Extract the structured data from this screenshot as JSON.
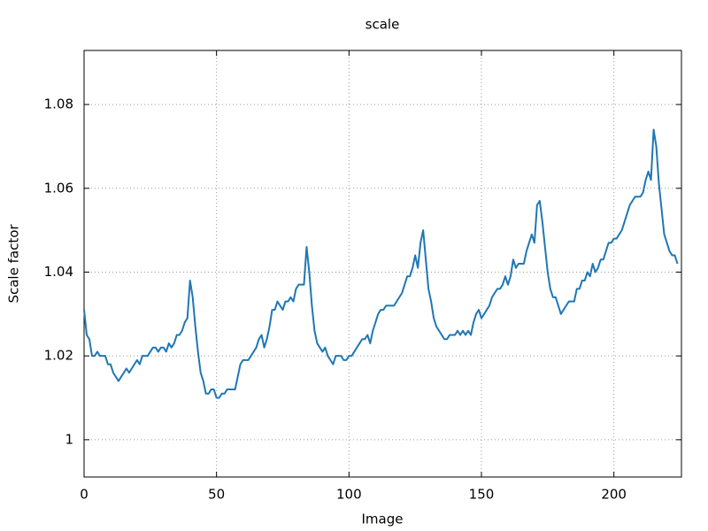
{
  "chart_data": {
    "type": "line",
    "title": "scale",
    "xlabel": "Image",
    "ylabel": "Scale factor",
    "x": [
      0,
      1,
      2,
      3,
      4,
      5,
      6,
      7,
      8,
      9,
      10,
      11,
      12,
      13,
      14,
      15,
      16,
      17,
      18,
      19,
      20,
      21,
      22,
      23,
      24,
      25,
      26,
      27,
      28,
      29,
      30,
      31,
      32,
      33,
      34,
      35,
      36,
      37,
      38,
      39,
      40,
      41,
      42,
      43,
      44,
      45,
      46,
      47,
      48,
      49,
      50,
      51,
      52,
      53,
      54,
      55,
      56,
      57,
      58,
      59,
      60,
      61,
      62,
      63,
      64,
      65,
      66,
      67,
      68,
      69,
      70,
      71,
      72,
      73,
      74,
      75,
      76,
      77,
      78,
      79,
      80,
      81,
      82,
      83,
      84,
      85,
      86,
      87,
      88,
      89,
      90,
      91,
      92,
      93,
      94,
      95,
      96,
      97,
      98,
      99,
      100,
      101,
      102,
      103,
      104,
      105,
      106,
      107,
      108,
      109,
      110,
      111,
      112,
      113,
      114,
      115,
      116,
      117,
      118,
      119,
      120,
      121,
      122,
      123,
      124,
      125,
      126,
      127,
      128,
      129,
      130,
      131,
      132,
      133,
      134,
      135,
      136,
      137,
      138,
      139,
      140,
      141,
      142,
      143,
      144,
      145,
      146,
      147,
      148,
      149,
      150,
      151,
      152,
      153,
      154,
      155,
      156,
      157,
      158,
      159,
      160,
      161,
      162,
      163,
      164,
      165,
      166,
      167,
      168,
      169,
      170,
      171,
      172,
      173,
      174,
      175,
      176,
      177,
      178,
      179,
      180,
      181,
      182,
      183,
      184,
      185,
      186,
      187,
      188,
      189,
      190,
      191,
      192,
      193,
      194,
      195,
      196,
      197,
      198,
      199,
      200,
      201,
      202,
      203,
      204,
      205,
      206,
      207,
      208,
      209,
      210,
      211,
      212,
      213,
      214,
      215,
      216,
      217,
      218,
      219,
      220,
      221,
      222,
      223,
      224
    ],
    "series": [
      {
        "name": "scale",
        "color": "#1f77b4",
        "values": [
          1.031,
          1.025,
          1.024,
          1.02,
          1.02,
          1.021,
          1.02,
          1.02,
          1.02,
          1.018,
          1.018,
          1.016,
          1.015,
          1.014,
          1.015,
          1.016,
          1.017,
          1.016,
          1.017,
          1.018,
          1.019,
          1.018,
          1.02,
          1.02,
          1.02,
          1.021,
          1.022,
          1.022,
          1.021,
          1.022,
          1.022,
          1.021,
          1.023,
          1.022,
          1.023,
          1.025,
          1.025,
          1.026,
          1.028,
          1.029,
          1.038,
          1.034,
          1.027,
          1.021,
          1.016,
          1.014,
          1.011,
          1.011,
          1.012,
          1.012,
          1.01,
          1.01,
          1.011,
          1.011,
          1.012,
          1.012,
          1.012,
          1.012,
          1.015,
          1.018,
          1.019,
          1.019,
          1.019,
          1.02,
          1.021,
          1.022,
          1.024,
          1.025,
          1.022,
          1.024,
          1.027,
          1.031,
          1.031,
          1.033,
          1.032,
          1.031,
          1.033,
          1.033,
          1.034,
          1.033,
          1.036,
          1.037,
          1.037,
          1.037,
          1.046,
          1.04,
          1.032,
          1.026,
          1.023,
          1.022,
          1.021,
          1.022,
          1.02,
          1.019,
          1.018,
          1.02,
          1.02,
          1.02,
          1.019,
          1.019,
          1.02,
          1.02,
          1.021,
          1.022,
          1.023,
          1.024,
          1.024,
          1.025,
          1.023,
          1.026,
          1.028,
          1.03,
          1.031,
          1.031,
          1.032,
          1.032,
          1.032,
          1.032,
          1.033,
          1.034,
          1.035,
          1.037,
          1.039,
          1.039,
          1.041,
          1.044,
          1.041,
          1.047,
          1.05,
          1.043,
          1.036,
          1.033,
          1.029,
          1.027,
          1.026,
          1.025,
          1.024,
          1.024,
          1.025,
          1.025,
          1.025,
          1.026,
          1.025,
          1.026,
          1.025,
          1.026,
          1.025,
          1.028,
          1.03,
          1.031,
          1.029,
          1.03,
          1.031,
          1.032,
          1.034,
          1.035,
          1.036,
          1.036,
          1.037,
          1.039,
          1.037,
          1.039,
          1.043,
          1.041,
          1.042,
          1.042,
          1.042,
          1.045,
          1.047,
          1.049,
          1.047,
          1.056,
          1.057,
          1.052,
          1.046,
          1.04,
          1.036,
          1.034,
          1.034,
          1.032,
          1.03,
          1.031,
          1.032,
          1.033,
          1.033,
          1.033,
          1.036,
          1.036,
          1.038,
          1.038,
          1.04,
          1.039,
          1.042,
          1.04,
          1.041,
          1.043,
          1.043,
          1.045,
          1.047,
          1.047,
          1.048,
          1.048,
          1.049,
          1.05,
          1.052,
          1.054,
          1.056,
          1.057,
          1.058,
          1.058,
          1.058,
          1.059,
          1.062,
          1.064,
          1.062,
          1.074,
          1.07,
          1.061,
          1.055,
          1.049,
          1.047,
          1.045,
          1.044,
          1.044,
          1.042
        ]
      }
    ],
    "xlim": [
      0,
      225.5
    ],
    "ylim": [
      0.9911,
      1.0929
    ],
    "xticks": [
      0,
      50,
      100,
      150,
      200
    ],
    "yticks": [
      1,
      1.02,
      1.04,
      1.06,
      1.08
    ],
    "grid": true
  }
}
